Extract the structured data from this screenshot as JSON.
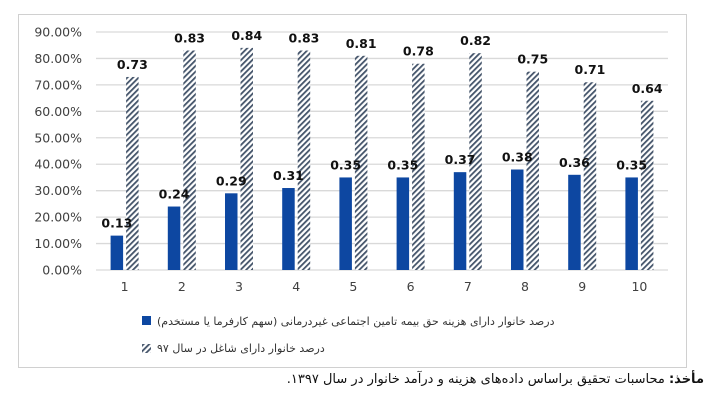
{
  "chart_data": {
    "type": "bar",
    "title": "",
    "xlabel": "",
    "ylabel": "",
    "categories": [
      "1",
      "2",
      "3",
      "4",
      "5",
      "6",
      "7",
      "8",
      "9",
      "10"
    ],
    "series": [
      {
        "name": "درصد خانوار دارای هزینه حق بیمه تامین اجتماعی غیردرمانی (سهم کارفرما یا مستخدم)",
        "values": [
          0.13,
          0.24,
          0.29,
          0.31,
          0.35,
          0.35,
          0.37,
          0.38,
          0.36,
          0.35
        ],
        "labels": [
          "0.13",
          "0.24",
          "0.29",
          "0.31",
          "0.35",
          "0.35",
          "0.37",
          "0.38",
          "0.36",
          "0.35"
        ],
        "color": "#0d47a1",
        "pattern": "solid"
      },
      {
        "name": "درصد خانوار دارای شاغل در سال ۹۷",
        "values": [
          0.73,
          0.83,
          0.84,
          0.83,
          0.81,
          0.78,
          0.82,
          0.75,
          0.71,
          0.64
        ],
        "labels": [
          "0.73",
          "0.83",
          "0.84",
          "0.83",
          "0.81",
          "0.78",
          "0.82",
          "0.75",
          "0.71",
          "0.64"
        ],
        "color": "#44546a",
        "pattern": "diagonal-hatch"
      }
    ],
    "yticks": [
      "0.00%",
      "10.00%",
      "20.00%",
      "30.00%",
      "40.00%",
      "50.00%",
      "60.00%",
      "70.00%",
      "80.00%",
      "90.00%"
    ],
    "ylim": [
      0,
      0.9
    ],
    "grid": true,
    "legend_position": "bottom"
  },
  "source": {
    "label": "مأخذ:",
    "text": " محاسبات تحقیق براساس داده‌های هزینه و درآمد خانوار در سال ۱۳۹۷."
  }
}
